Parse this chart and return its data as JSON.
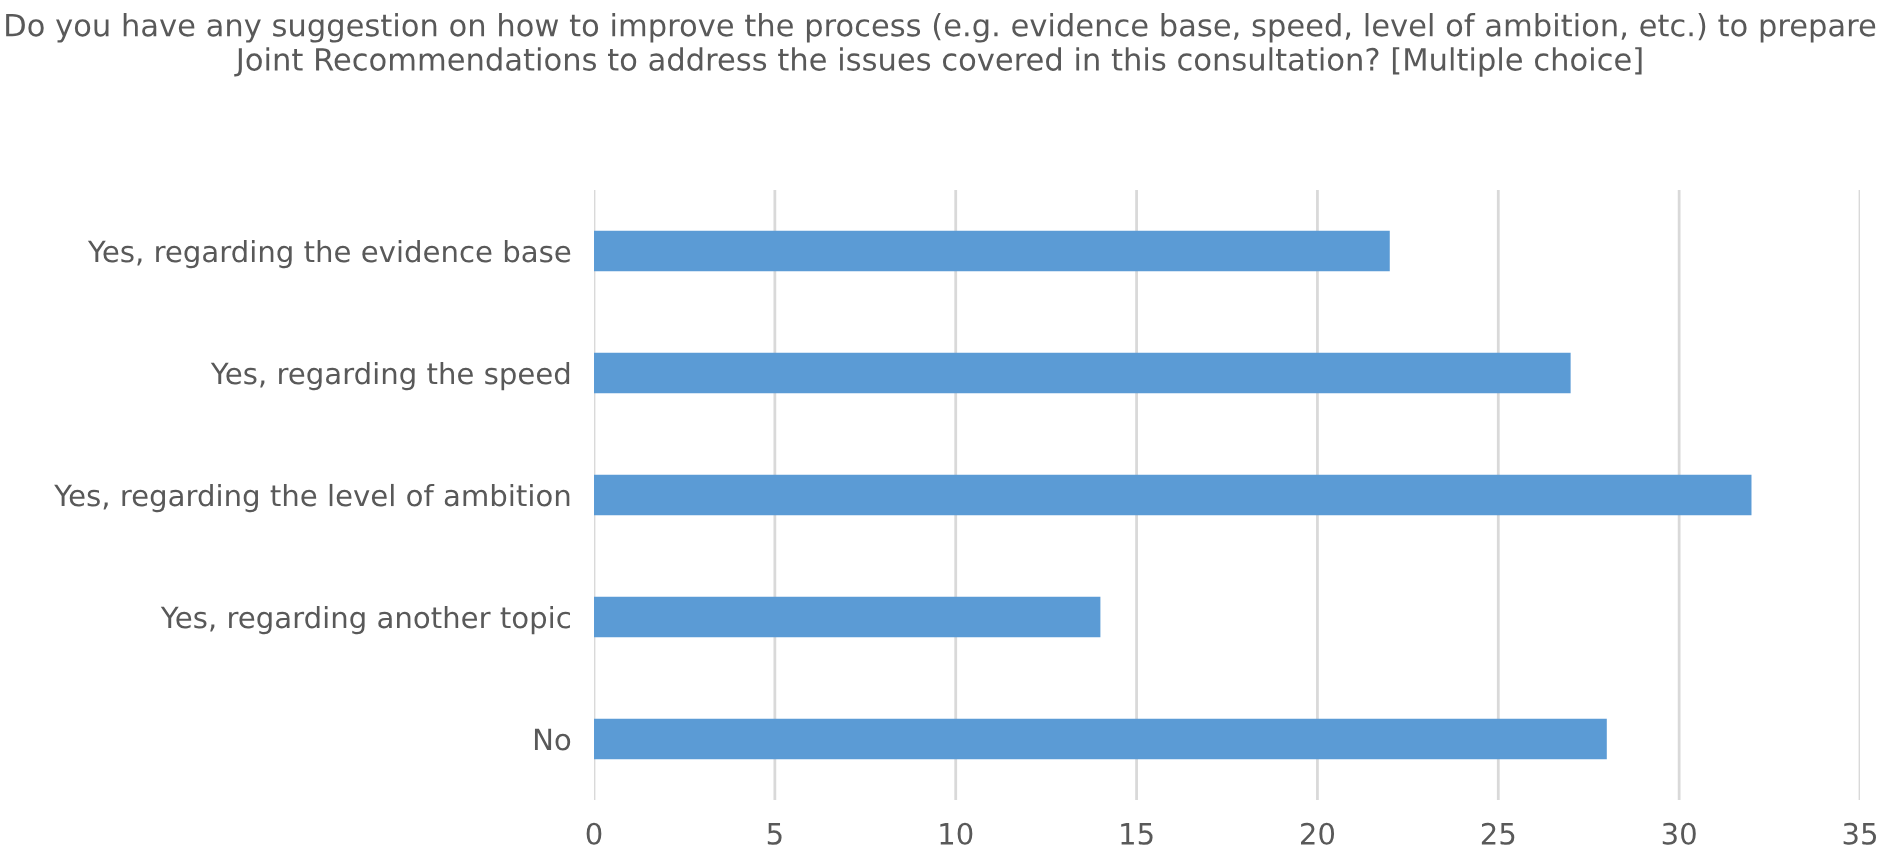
{
  "chart_data": {
    "type": "bar",
    "orientation": "horizontal",
    "title": "Do you have any suggestion on how to improve the process (e.g. evidence base, speed, level of ambition, etc.) to prepare Joint Recommendations to address the issues covered in this consultation? [Multiple choice]",
    "categories": [
      "Yes, regarding the evidence base",
      "Yes, regarding the speed",
      "Yes, regarding the level of ambition",
      "Yes, regarding another topic",
      "No"
    ],
    "values": [
      22,
      27,
      32,
      14,
      28
    ],
    "color": "#5b9bd5",
    "xlim": [
      0,
      35
    ],
    "xticks": [
      0,
      5,
      10,
      15,
      20,
      25,
      30,
      35
    ],
    "grid": "x"
  }
}
